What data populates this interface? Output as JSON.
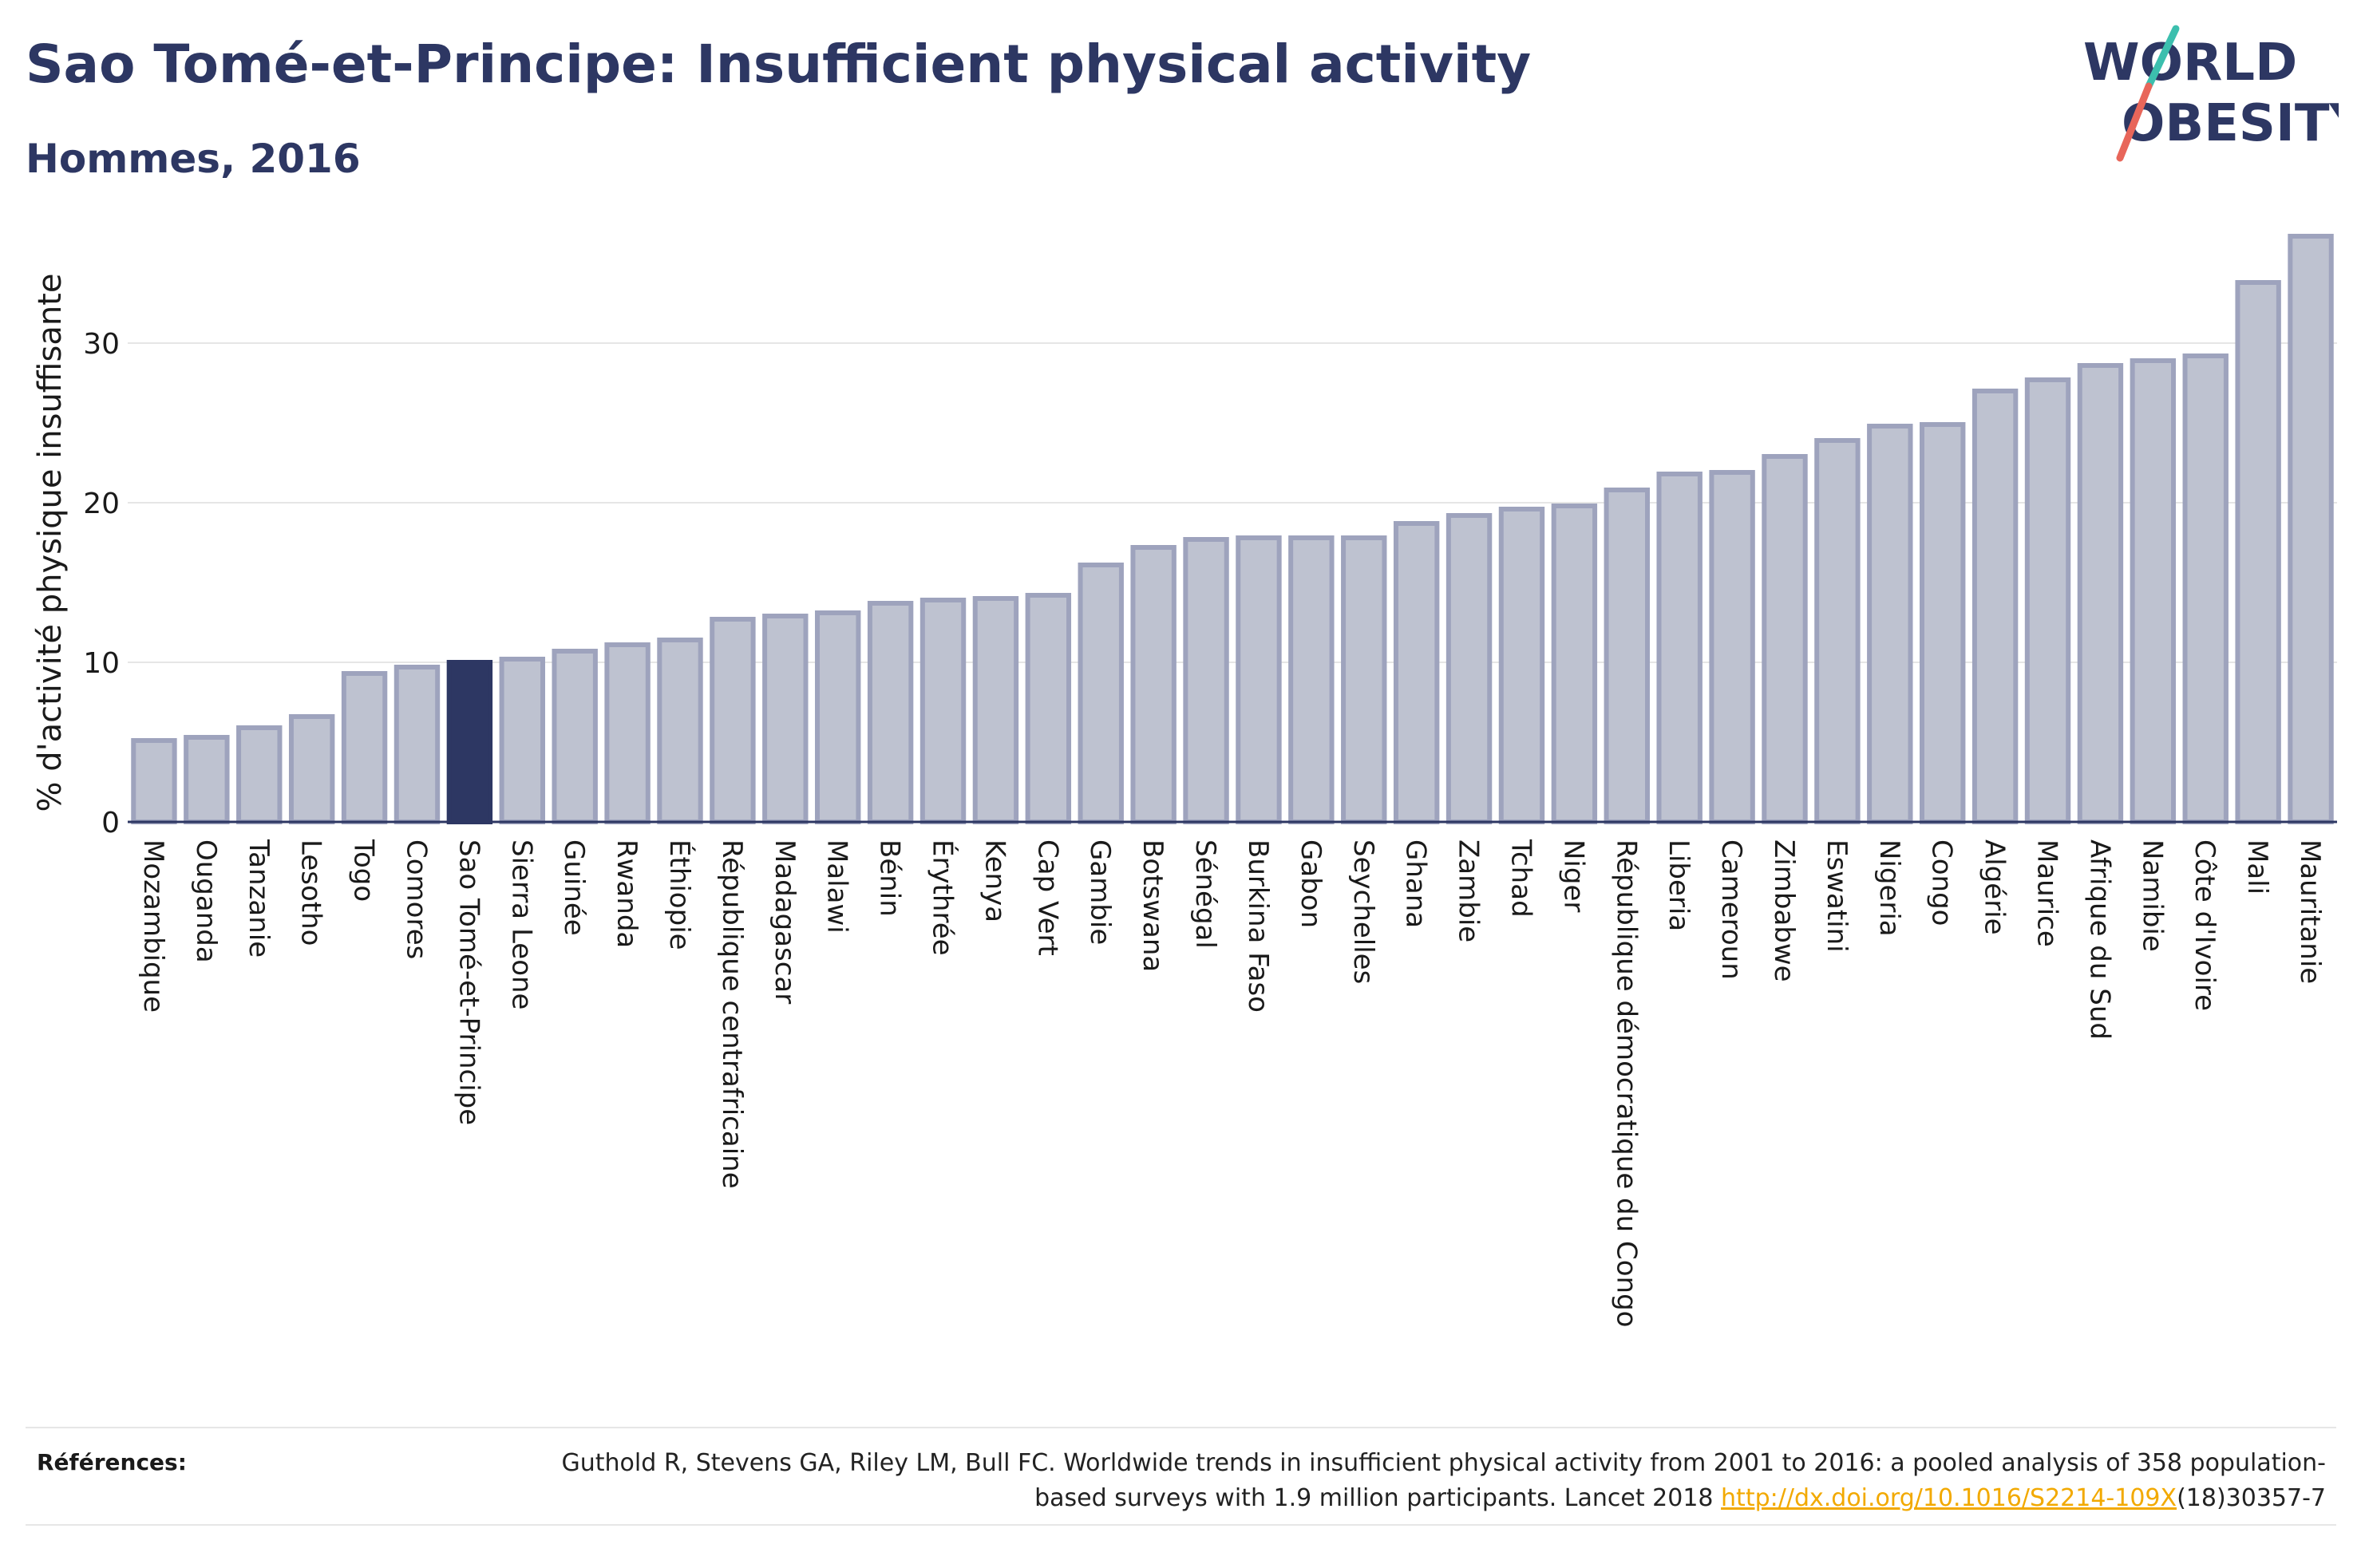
{
  "header": {
    "title": "Sao Tomé-et-Principe: Insufficient physical activity",
    "subtitle": "Hommes, 2016"
  },
  "logo": {
    "line1": "WORLD",
    "line2": "OBESITY",
    "text_color": "#2d3763",
    "slash_color_top": "#3cbfae",
    "slash_color_bottom": "#e8665a"
  },
  "chart_data": {
    "type": "bar",
    "ylabel": "% d'activité physique insuffisante",
    "xlabel": "",
    "ylim": [
      0,
      37
    ],
    "yticks": [
      0,
      10,
      20,
      30
    ],
    "grid": true,
    "highlight": "Sao Tomé-et-Principe",
    "colors": {
      "bar": "#bec2d0",
      "bar_stroke": "#9ea3bd",
      "highlight": "#2d3763",
      "grid": "#e6e6e6",
      "axis": "#2d3763"
    },
    "categories": [
      "Mozambique",
      "Ouganda",
      "Tanzanie",
      "Lesotho",
      "Togo",
      "Comores",
      "Sao Tomé-et-Principe",
      "Sierra Leone",
      "Guinée",
      "Rwanda",
      "Éthiopie",
      "République centrafricaine",
      "Madagascar",
      "Malawi",
      "Bénin",
      "Érythrée",
      "Kenya",
      "Cap Vert",
      "Gambie",
      "Botswana",
      "Sénégal",
      "Burkina Faso",
      "Gabon",
      "Seychelles",
      "Ghana",
      "Zambie",
      "Tchad",
      "Niger",
      "République démocratique du Congo",
      "Liberia",
      "Cameroun",
      "Zimbabwe",
      "Eswatini",
      "Nigeria",
      "Congo",
      "Algérie",
      "Maurice",
      "Afrique du Sud",
      "Namibie",
      "Côte d'Ivoire",
      "Mali",
      "Mauritanie"
    ],
    "values": [
      5.1,
      5.3,
      5.9,
      6.6,
      9.3,
      9.7,
      10.0,
      10.2,
      10.7,
      11.1,
      11.4,
      12.7,
      12.9,
      13.1,
      13.7,
      13.9,
      14.0,
      14.2,
      16.1,
      17.2,
      17.7,
      17.8,
      17.8,
      17.8,
      18.7,
      19.2,
      19.6,
      19.8,
      20.8,
      21.8,
      21.9,
      22.9,
      23.9,
      24.8,
      24.9,
      27.0,
      27.7,
      28.6,
      28.9,
      29.2,
      33.8,
      36.7
    ]
  },
  "references": {
    "label": "Références:",
    "text_before": "Guthold R, Stevens GA, Riley LM, Bull FC. Worldwide trends in insufficient physical activity from 2001 to 2016: a pooled analysis of 358 population-based surveys with 1.9 million participants. Lancet 2018 ",
    "link_text": "http://dx.doi.org/10.1016/S2214-109X",
    "text_after": "(18)30357-7"
  }
}
